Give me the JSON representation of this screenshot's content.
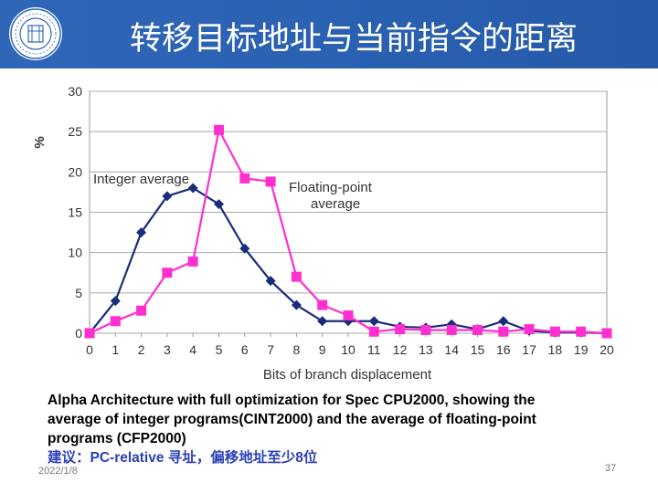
{
  "slide": {
    "title": "转移目标地址与当前指令的距离",
    "caption_line1": "Alpha Architecture with full optimization for Spec CPU2000, showing the",
    "caption_line2": "average of integer programs(CINT2000) and the average of floating-point",
    "caption_line3": "programs (CFP2000)",
    "suggestion": "建议：PC-relative 寻址，偏移地址至少8位",
    "date": "2022/1/8",
    "page_number": "37"
  },
  "colors": {
    "header": "#2f66b8",
    "integer_series": "#1a2d7a",
    "float_series": "#ff2ecf",
    "suggestion_text": "#2b3fb8"
  },
  "chart_data": {
    "type": "line",
    "xlabel": "Bits of branch displacement",
    "ylabel": "%",
    "x": [
      0,
      1,
      2,
      3,
      4,
      5,
      6,
      7,
      8,
      9,
      10,
      11,
      12,
      13,
      14,
      15,
      16,
      17,
      18,
      19,
      20
    ],
    "ylim": [
      0,
      30
    ],
    "yticks": [
      0,
      5,
      10,
      15,
      20,
      25,
      30
    ],
    "grid": "horizontal",
    "series": [
      {
        "name": "Integer average",
        "marker": "diamond",
        "values": [
          0,
          4,
          12.5,
          17,
          18,
          16,
          10.5,
          6.5,
          3.5,
          1.5,
          1.5,
          1.5,
          0.8,
          0.7,
          1.1,
          0.5,
          1.5,
          0.3,
          0.1,
          0.1,
          0
        ]
      },
      {
        "name": "Floating-point average",
        "marker": "square",
        "values": [
          0,
          1.5,
          2.8,
          7.5,
          8.9,
          25.2,
          19.2,
          18.8,
          7,
          3.5,
          2.2,
          0.2,
          0.5,
          0.4,
          0.4,
          0.4,
          0.2,
          0.5,
          0.2,
          0.2,
          0
        ]
      }
    ],
    "annotations": [
      {
        "series": "Integer average",
        "text": "Integer average"
      },
      {
        "series": "Floating-point average",
        "text": "Floating-point average"
      }
    ]
  }
}
